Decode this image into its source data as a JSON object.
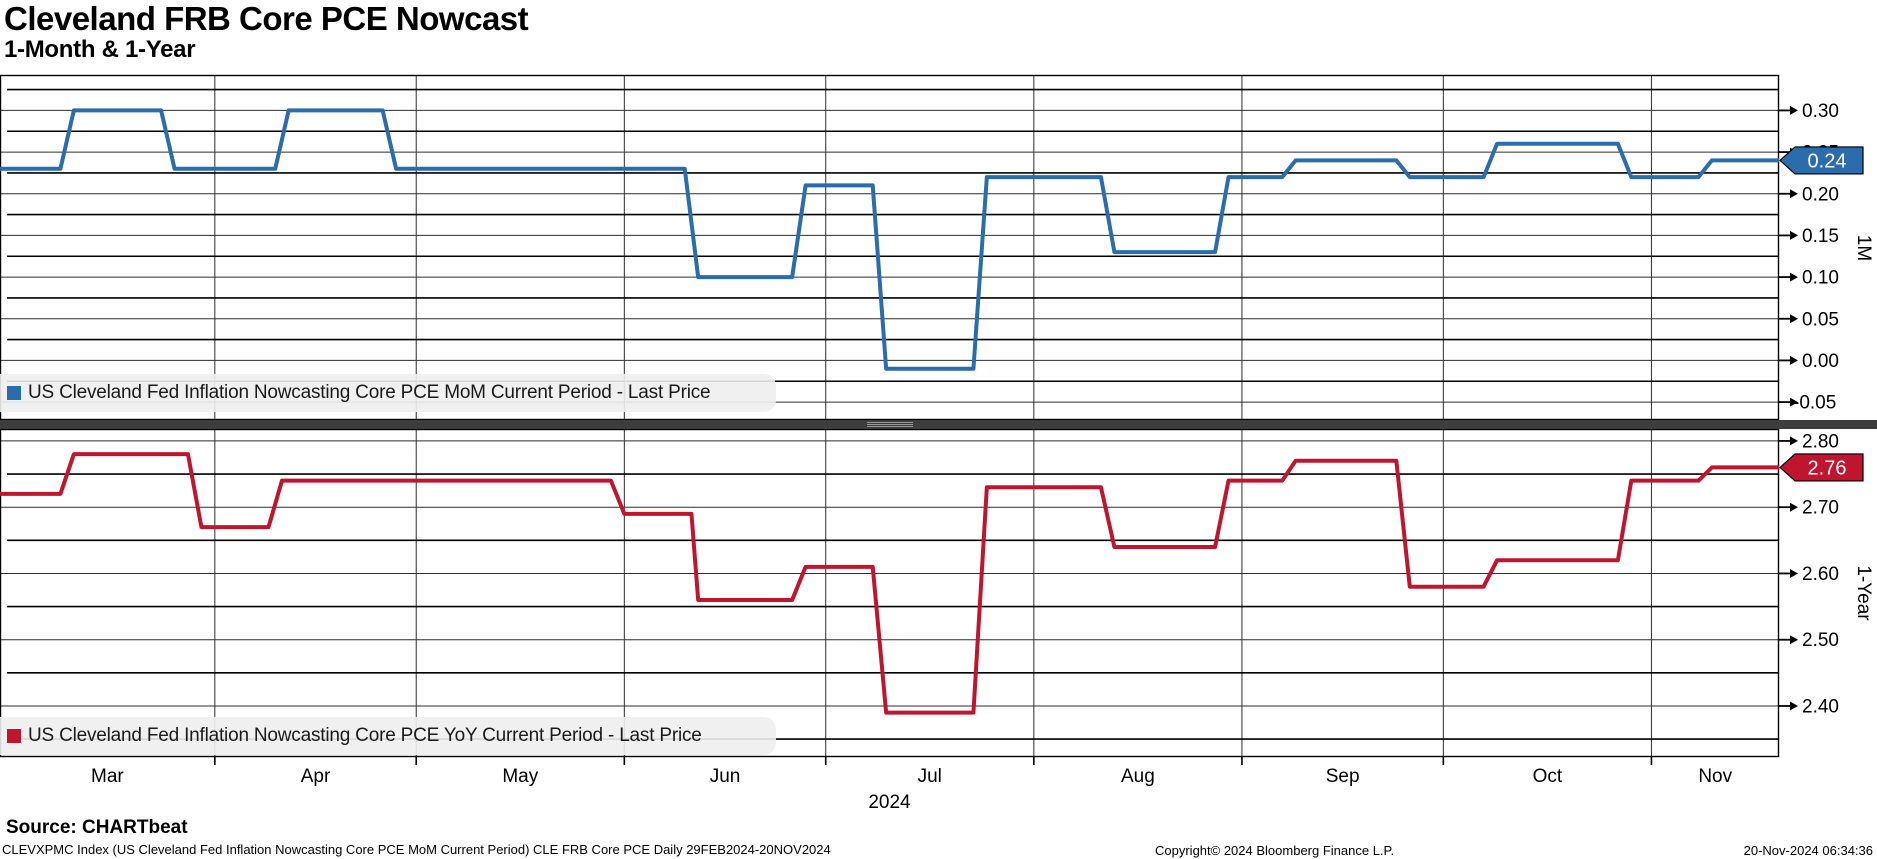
{
  "header": {
    "title": "Cleveland FRB Core PCE Nowcast",
    "subtitle": "1-Month & 1-Year"
  },
  "panes": [
    {
      "axis_label": "1M",
      "legend_label": "US Cleveland Fed Inflation Nowcasting Core PCE MoM Current Period - Last Price",
      "line_color": "#2A6CAC",
      "badge": {
        "label": "0.24",
        "color": "#2A6CAC"
      },
      "yticks": [
        "0.30",
        "0.25",
        "0.20",
        "0.15",
        "0.10",
        "0.05",
        "0.00",
        "-0.05"
      ],
      "ylim": [
        -0.0715,
        0.3425
      ]
    },
    {
      "axis_label": "1-Year",
      "legend_label": "US Cleveland Fed Inflation Nowcasting Core PCE YoY Current Period - Last Price",
      "line_color": "#C0152F",
      "badge": {
        "label": "2.76",
        "color": "#C0152F"
      },
      "yticks": [
        "2.80",
        "2.70",
        "2.60",
        "2.50",
        "2.40"
      ],
      "ylim": [
        2.323,
        2.818
      ]
    }
  ],
  "x_axis": {
    "year_label": "2024",
    "start_date": "2024-02-29",
    "end_date": "2024-11-20",
    "total_days": 265,
    "gridline_days": [
      32,
      62,
      93,
      123,
      154,
      185,
      215,
      246
    ],
    "month_labels": [
      {
        "label": "Mar",
        "center_day": 16
      },
      {
        "label": "Apr",
        "center_day": 47
      },
      {
        "label": "May",
        "center_day": 77.5
      },
      {
        "label": "Jun",
        "center_day": 108
      },
      {
        "label": "Jul",
        "center_day": 138.5
      },
      {
        "label": "Aug",
        "center_day": 169.5
      },
      {
        "label": "Sep",
        "center_day": 200
      },
      {
        "label": "Oct",
        "center_day": 230.5
      },
      {
        "label": "Nov",
        "center_day": 255.5
      }
    ]
  },
  "footer": {
    "source": "Source: CHARTbeat",
    "description": "CLEVXPMC Index (US Cleveland Fed Inflation Nowcasting Core PCE MoM Current Period) CLE FRB Core PCE  Daily 29FEB2024-20NOV2024",
    "copyright": "Copyright© 2024 Bloomberg Finance L.P.",
    "timestamp": "20-Nov-2024 06:34:36"
  },
  "chart_data": [
    {
      "type": "line",
      "subtype": "step-plateaus",
      "pane": "1M",
      "name": "US Cleveland Fed Inflation Nowcasting Core PCE MoM Current Period - Last Price",
      "color": "#2A6CAC",
      "x_unit": "days since 2024-02-29",
      "x_range": [
        0,
        265
      ],
      "ylim": [
        -0.0715,
        0.3425
      ],
      "yticks": [
        0.3,
        0.25,
        0.2,
        0.15,
        0.1,
        0.05,
        0.0,
        -0.05
      ],
      "last_price": 0.24,
      "legend_position": "bottom-left",
      "grid": true,
      "segments_format": [
        "start_day",
        "end_day",
        "value"
      ],
      "segments": [
        [
          0,
          9,
          0.23
        ],
        [
          11,
          24,
          0.3
        ],
        [
          26,
          41,
          0.23
        ],
        [
          43,
          57,
          0.3
        ],
        [
          59,
          102,
          0.23
        ],
        [
          104,
          118,
          0.1
        ],
        [
          120,
          130,
          0.21
        ],
        [
          132,
          145,
          -0.01
        ],
        [
          147,
          164,
          0.22
        ],
        [
          166,
          181,
          0.13
        ],
        [
          183,
          191,
          0.22
        ],
        [
          193,
          208,
          0.24
        ],
        [
          210,
          221,
          0.22
        ],
        [
          223,
          241,
          0.26
        ],
        [
          243,
          253,
          0.22
        ],
        [
          255,
          265,
          0.24
        ]
      ]
    },
    {
      "type": "line",
      "subtype": "step-plateaus",
      "pane": "1-Year",
      "name": "US Cleveland Fed Inflation Nowcasting Core PCE YoY Current Period - Last Price",
      "color": "#C0152F",
      "x_unit": "days since 2024-02-29",
      "x_range": [
        0,
        265
      ],
      "ylim": [
        2.323,
        2.818
      ],
      "yticks": [
        2.8,
        2.7,
        2.6,
        2.5,
        2.4
      ],
      "last_price": 2.76,
      "legend_position": "bottom-left",
      "grid": true,
      "segments_format": [
        "start_day",
        "end_day",
        "value"
      ],
      "segments": [
        [
          0,
          9,
          2.72
        ],
        [
          11,
          28,
          2.78
        ],
        [
          30,
          40,
          2.67
        ],
        [
          42,
          91,
          2.74
        ],
        [
          93,
          103,
          2.69
        ],
        [
          104,
          118,
          2.56
        ],
        [
          120,
          130,
          2.61
        ],
        [
          132,
          145,
          2.39
        ],
        [
          147,
          164,
          2.73
        ],
        [
          166,
          181,
          2.64
        ],
        [
          183,
          191,
          2.74
        ],
        [
          193,
          208,
          2.77
        ],
        [
          210,
          221,
          2.58
        ],
        [
          223,
          241,
          2.62
        ],
        [
          243,
          253,
          2.74
        ],
        [
          255,
          265,
          2.76
        ]
      ]
    }
  ]
}
